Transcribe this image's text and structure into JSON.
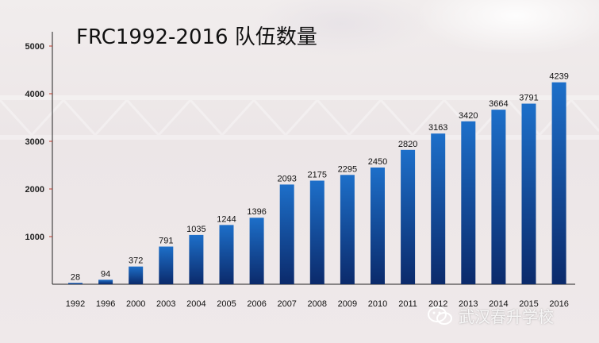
{
  "title": "FRC1992-2016  队伍数量",
  "watermark_text": "武汉春升学校",
  "watermark_icon": "wechat-icon",
  "colors": {
    "bar_top": "#1d6fc9",
    "bar_bottom": "#0b2a6b",
    "axis": "#222222",
    "tick": "#c0392b"
  },
  "chart_data": {
    "type": "bar",
    "title": "FRC1992-2016  队伍数量",
    "xlabel": "",
    "ylabel": "",
    "categories": [
      "1992",
      "1996",
      "2000",
      "2003",
      "2004",
      "2005",
      "2006",
      "2007",
      "2008",
      "2009",
      "2010",
      "2011",
      "2012",
      "2013",
      "2014",
      "2015",
      "2016"
    ],
    "values": [
      28,
      94,
      372,
      791,
      1035,
      1244,
      1396,
      2093,
      2175,
      2295,
      2450,
      2820,
      3163,
      3420,
      3664,
      3791,
      4239
    ],
    "ylim": [
      0,
      5000
    ],
    "yticks": [
      1000,
      2000,
      3000,
      4000,
      5000
    ],
    "grid": false,
    "legend": "none"
  }
}
